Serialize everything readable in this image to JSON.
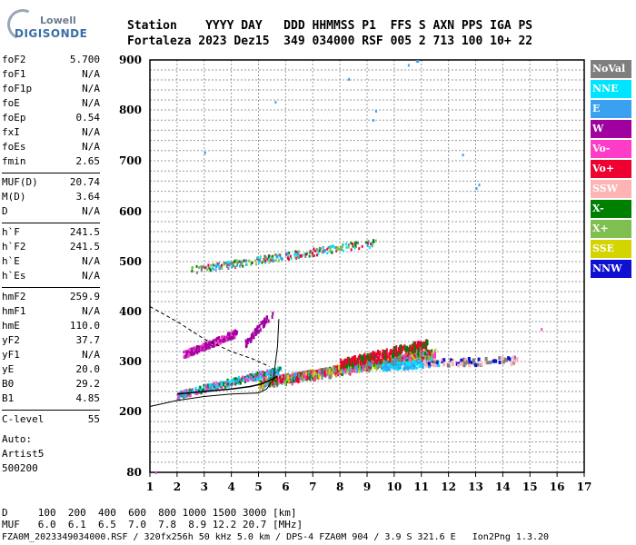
{
  "logo": {
    "line1": "Lowell",
    "line2": "DIGISONDE"
  },
  "header": {
    "row1": "Station    YYYY DAY   DDD HHMMSS P1  FFS S AXN PPS IGA PS",
    "row2": "Fortaleza 2023 Dez15  349 034000 RSF 005 2 713 100 10+ 22"
  },
  "params": [
    {
      "name": "foF2",
      "value": "5.700"
    },
    {
      "name": "foF1",
      "value": "N/A"
    },
    {
      "name": "foF1p",
      "value": "N/A"
    },
    {
      "name": "foE",
      "value": "N/A"
    },
    {
      "name": "foEp",
      "value": "0.54"
    },
    {
      "name": "fxI",
      "value": "N/A"
    },
    {
      "name": "foEs",
      "value": "N/A"
    },
    {
      "name": "fmin",
      "value": "2.65"
    },
    {
      "name": "MUF(D)",
      "value": "20.74"
    },
    {
      "name": "M(D)",
      "value": "3.64"
    },
    {
      "name": "D",
      "value": "N/A"
    },
    {
      "name": "h`F",
      "value": "241.5"
    },
    {
      "name": "h`F2",
      "value": "241.5"
    },
    {
      "name": "h`E",
      "value": "N/A"
    },
    {
      "name": "h`Es",
      "value": "N/A"
    },
    {
      "name": "hmF2",
      "value": "259.9"
    },
    {
      "name": "hmF1",
      "value": "N/A"
    },
    {
      "name": "hmE",
      "value": "110.0"
    },
    {
      "name": "yF2",
      "value": "37.7"
    },
    {
      "name": "yF1",
      "value": "N/A"
    },
    {
      "name": "yE",
      "value": "20.0"
    },
    {
      "name": "B0",
      "value": "29.2"
    },
    {
      "name": "B1",
      "value": "4.85"
    },
    {
      "name": "C-level",
      "value": "55"
    }
  ],
  "auto": {
    "line1": "Auto:",
    "line2": "Artist5",
    "line3": "500200"
  },
  "legend": [
    {
      "label": "NoVal",
      "color": "#7f7f7f"
    },
    {
      "label": "NNE",
      "color": "#00e5ff"
    },
    {
      "label": "E",
      "color": "#3aa0f0"
    },
    {
      "label": "W",
      "color": "#a000a0"
    },
    {
      "label": "Vo-",
      "color": "#ff3cc8"
    },
    {
      "label": "Vo+",
      "color": "#ee0030"
    },
    {
      "label": "SSW",
      "color": "#ffb4b4"
    },
    {
      "label": "X-",
      "color": "#008000"
    },
    {
      "label": "X+",
      "color": "#7fbf50"
    },
    {
      "label": "SSE",
      "color": "#d4d400"
    },
    {
      "label": "NNW",
      "color": "#1010d0"
    }
  ],
  "chart_data": {
    "type": "scatter",
    "x_ticks": [
      "1",
      "2",
      "3",
      "4",
      "5",
      "6",
      "7",
      "8",
      "9",
      "10",
      "11",
      "12",
      "13",
      "14",
      "15",
      "16",
      "17"
    ],
    "y_ticks": [
      "80",
      "200",
      "300",
      "400",
      "500",
      "600",
      "700",
      "800",
      "900"
    ],
    "xlim": [
      1,
      17
    ],
    "ylim_labels": [
      80,
      900
    ],
    "grid": true,
    "legend_placement": "right"
  },
  "bottom": {
    "d_row": "D     100  200  400  600  800 1000 1500 3000 [km]",
    "muf_row": "MUF   6.0  6.1  6.5  7.0  7.8  8.9 12.2 20.7 [MHz]"
  },
  "footer": "FZA0M_2023349034000.RSF / 320fx256h 50 kHz 5.0 km / DPS-4 FZA0M 904 / 3.9 S 321.6 E   Ion2Png 1.3.20"
}
